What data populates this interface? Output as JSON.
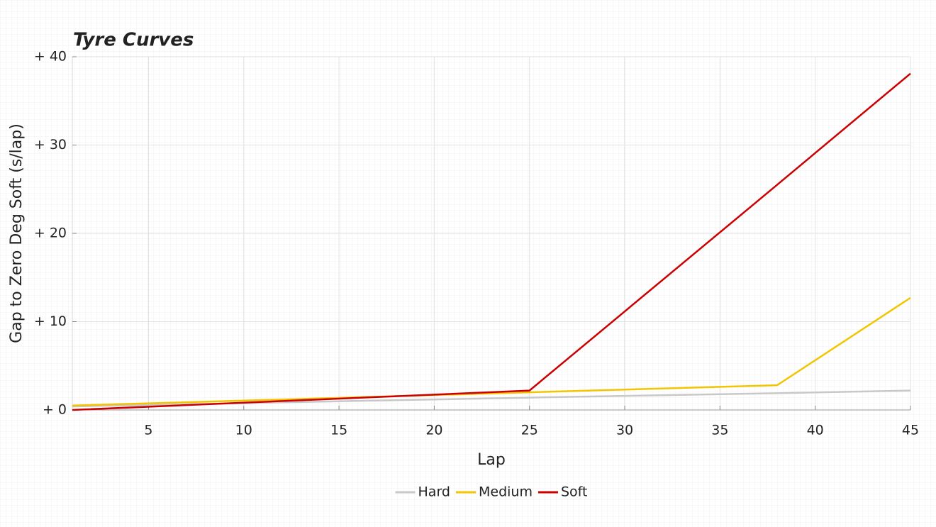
{
  "chart_data": {
    "type": "line",
    "title": "Tyre Curves",
    "x_label": "Lap",
    "y_label": "Gap to Zero Deg Soft (s/lap)",
    "x": [
      1,
      25,
      38,
      45
    ],
    "series": [
      {
        "name": "Hard",
        "color": "#c8c8c8",
        "values": [
          0.4,
          1.4,
          1.9,
          2.2
        ]
      },
      {
        "name": "Medium",
        "color": "#f2c500",
        "values": [
          0.5,
          2.0,
          2.8,
          12.7
        ]
      },
      {
        "name": "Soft",
        "color": "#cc0000",
        "values": [
          0.0,
          2.2,
          25.5,
          38.1
        ]
      }
    ],
    "xlim": [
      1,
      45
    ],
    "xticks": [
      5,
      10,
      15,
      20,
      25,
      30,
      35,
      40,
      45
    ],
    "ylim": [
      0,
      40
    ],
    "yticks": [
      {
        "value": 0,
        "label": "+ 0"
      },
      {
        "value": 10,
        "label": "+ 10"
      },
      {
        "value": 20,
        "label": "+ 20"
      },
      {
        "value": 30,
        "label": "+ 30"
      },
      {
        "value": 40,
        "label": "+ 40"
      }
    ],
    "grid": true,
    "legend": "bottom"
  }
}
